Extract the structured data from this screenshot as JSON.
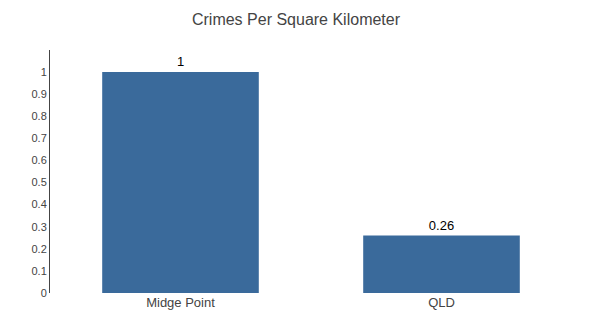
{
  "chart_data": {
    "type": "bar",
    "title": "Crimes Per Square Kilometer",
    "categories": [
      "Midge Point",
      "QLD"
    ],
    "values": [
      1.0,
      0.26
    ],
    "color": "#3a6a9b",
    "data_labels": true,
    "ylim": [
      0,
      1.1
    ],
    "yticks": [
      0,
      0.1,
      0.2,
      0.3,
      0.4,
      0.5,
      0.6,
      0.7,
      0.8,
      0.9,
      1.0
    ],
    "grid": false
  }
}
